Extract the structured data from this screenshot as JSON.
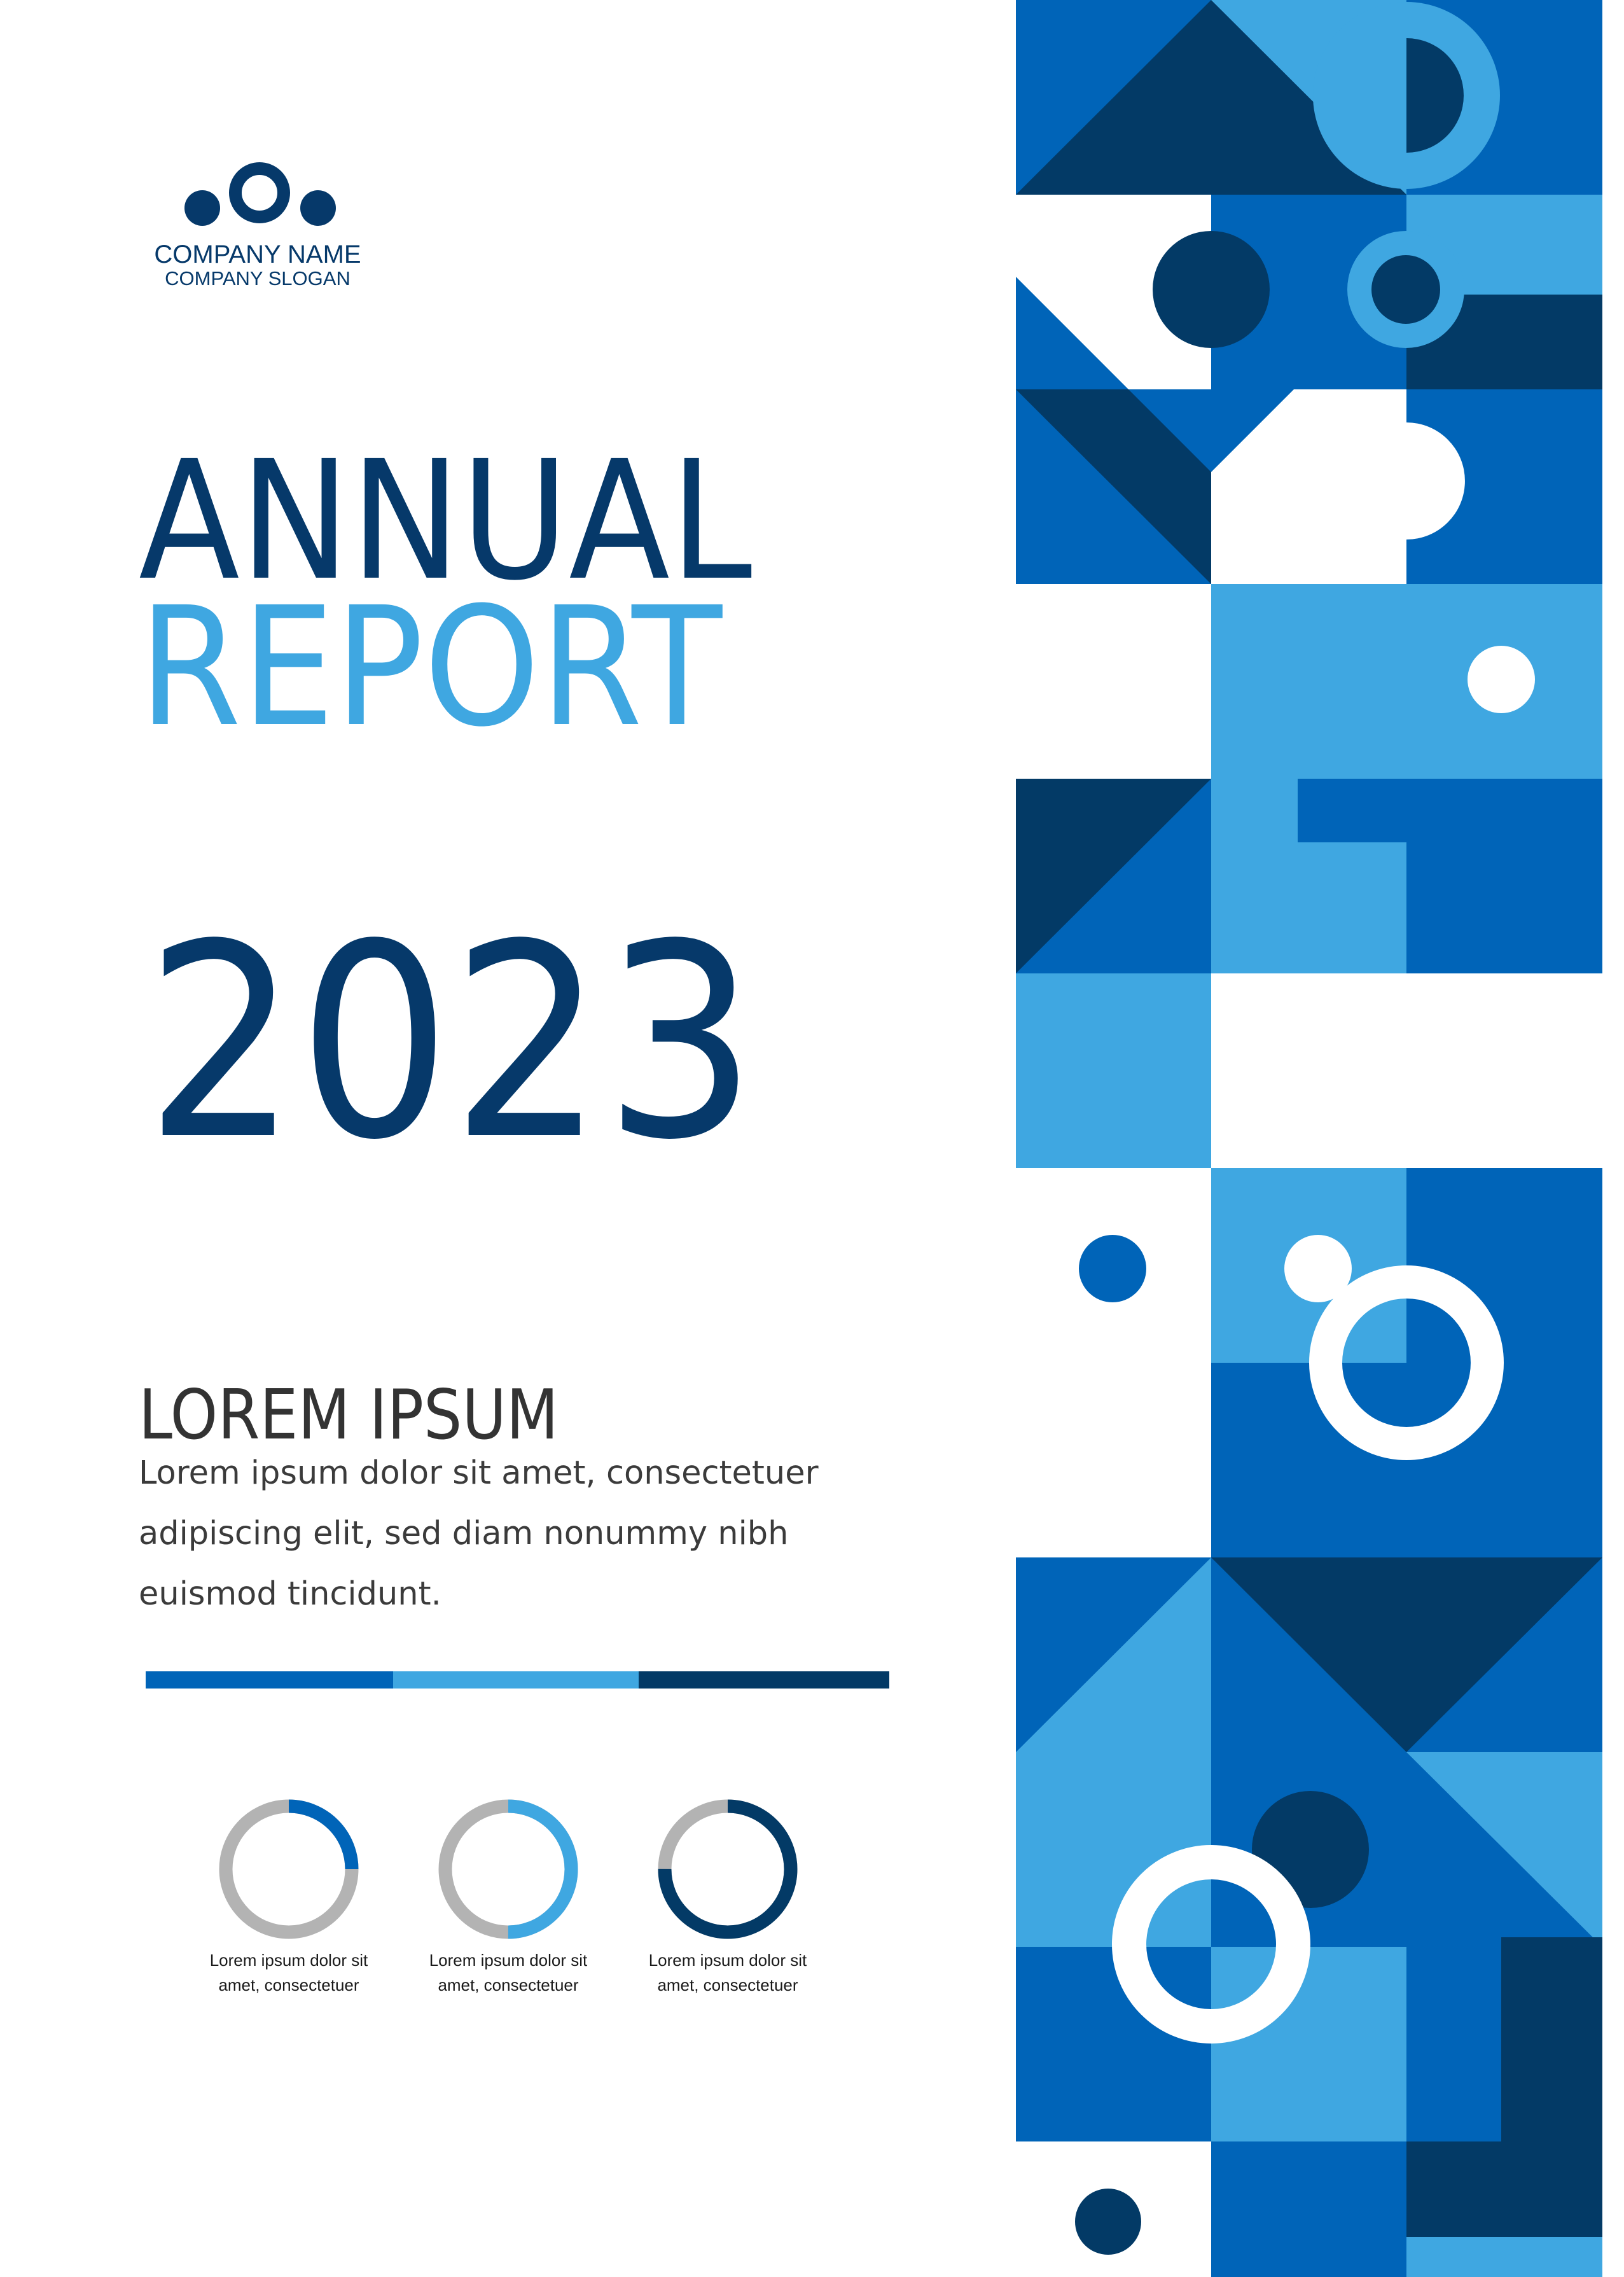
{
  "brand": {
    "company_name": "COMPANY NAME",
    "company_slogan": "COMPANY SLOGAN"
  },
  "cover": {
    "title_line1": "ANNUAL",
    "title_line2": "REPORT",
    "year": "2023"
  },
  "section": {
    "heading": "LOREM IPSUM",
    "body": "Lorem ipsum dolor sit amet, consectetuer adipiscing elit, sed diam nonummy nibh euismod tincidunt."
  },
  "stats": [
    {
      "label": "Lorem ipsum dolor sit amet, consectetuer",
      "percent": 25,
      "color": "#0064b8"
    },
    {
      "label": "Lorem ipsum dolor sit amet, consectetuer",
      "percent": 50,
      "color": "#3fa7e1"
    },
    {
      "label": "Lorem ipsum dolor sit amet, consectetuer",
      "percent": 75,
      "color": "#033a66"
    }
  ],
  "colors": {
    "navy": "#033a66",
    "blue": "#0064b8",
    "light_blue": "#3fa7e1",
    "gray": "#b3b3b3",
    "text": "#333333"
  }
}
